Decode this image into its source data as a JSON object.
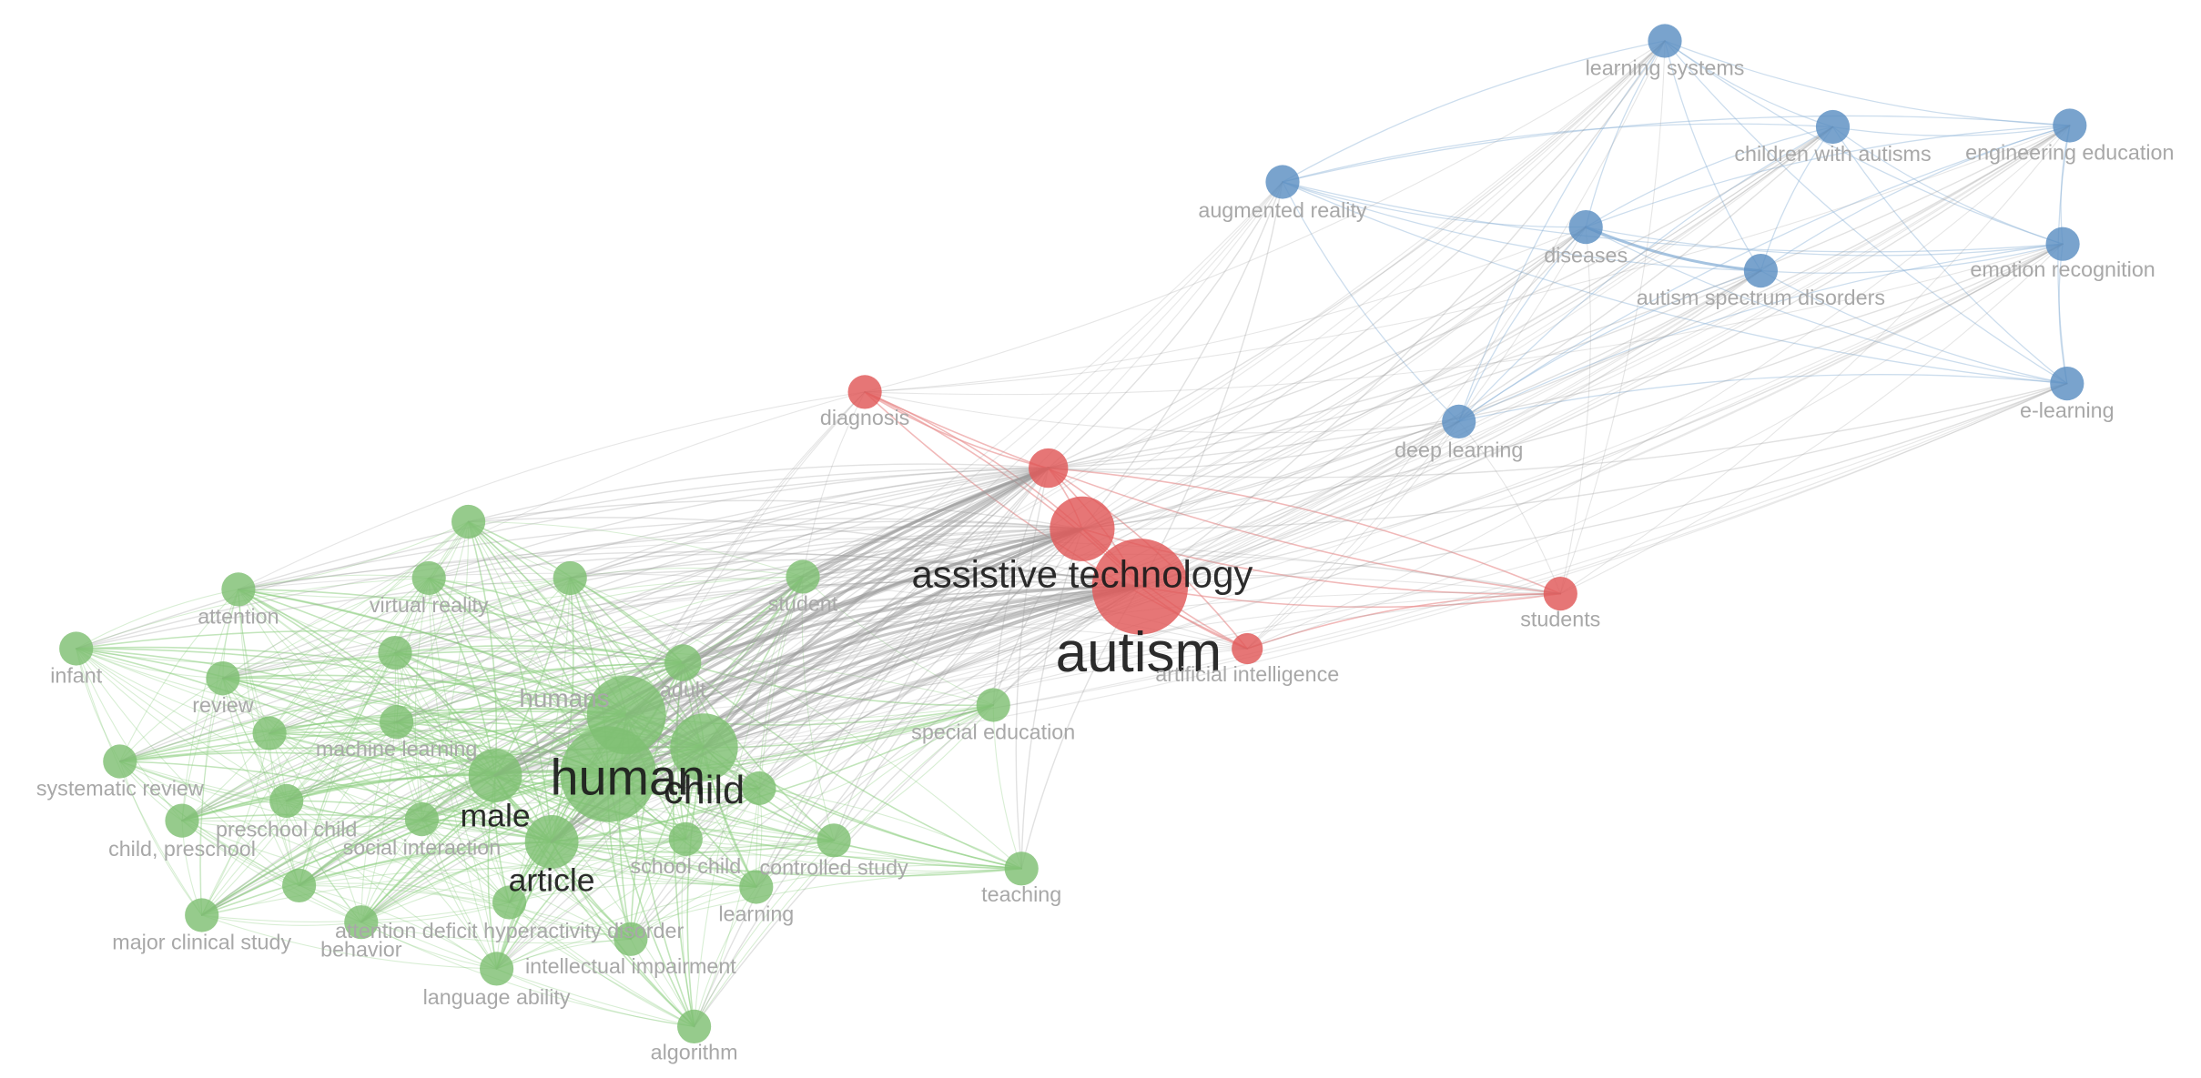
{
  "colors": {
    "green": "#7fbf73",
    "red": "#e05858",
    "blue": "#5b8fc2",
    "edge_gray": "#9a9a9a",
    "edge_green": "#8fcf84",
    "edge_red": "#e88a8a",
    "edge_blue": "#8fb4d8",
    "label_dim": "#a8a8a8",
    "label_dark": "#1a1a1a"
  },
  "nodes": [
    {
      "label": "autism",
      "cluster": "red",
      "weight": 10
    },
    {
      "label": "assistive technology",
      "cluster": "red",
      "weight": 6
    },
    {
      "label": "diagnosis",
      "cluster": "red",
      "weight": 1
    },
    {
      "label": "students",
      "cluster": "red",
      "weight": 1
    },
    {
      "label": "artificial intelligence",
      "cluster": "red",
      "weight": 1
    },
    {
      "label": "learning systems",
      "cluster": "blue",
      "weight": 1
    },
    {
      "label": "children with autisms",
      "cluster": "blue",
      "weight": 1
    },
    {
      "label": "engineering education",
      "cluster": "blue",
      "weight": 1
    },
    {
      "label": "augmented reality",
      "cluster": "blue",
      "weight": 1
    },
    {
      "label": "diseases",
      "cluster": "blue",
      "weight": 1
    },
    {
      "label": "autism spectrum disorders",
      "cluster": "blue",
      "weight": 1
    },
    {
      "label": "emotion recognition",
      "cluster": "blue",
      "weight": 1
    },
    {
      "label": "e-learning",
      "cluster": "blue",
      "weight": 1
    },
    {
      "label": "deep learning",
      "cluster": "blue",
      "weight": 1
    },
    {
      "label": "human",
      "cluster": "green",
      "weight": 10
    },
    {
      "label": "child",
      "cluster": "green",
      "weight": 7
    },
    {
      "label": "humans",
      "cluster": "green",
      "weight": 5
    },
    {
      "label": "male",
      "cluster": "green",
      "weight": 5
    },
    {
      "label": "article",
      "cluster": "green",
      "weight": 4
    },
    {
      "label": "adult",
      "cluster": "green",
      "weight": 2
    },
    {
      "label": "student",
      "cluster": "green",
      "weight": 1
    },
    {
      "label": "virtual reality",
      "cluster": "green",
      "weight": 1
    },
    {
      "label": "attention",
      "cluster": "green",
      "weight": 1
    },
    {
      "label": "infant",
      "cluster": "green",
      "weight": 1
    },
    {
      "label": "review",
      "cluster": "green",
      "weight": 1
    },
    {
      "label": "machine learning",
      "cluster": "green",
      "weight": 1
    },
    {
      "label": "systematic review",
      "cluster": "green",
      "weight": 1
    },
    {
      "label": "preschool child",
      "cluster": "green",
      "weight": 1
    },
    {
      "label": "child, preschool",
      "cluster": "green",
      "weight": 1
    },
    {
      "label": "social interaction",
      "cluster": "green",
      "weight": 1
    },
    {
      "label": "school child",
      "cluster": "green",
      "weight": 1
    },
    {
      "label": "controlled study",
      "cluster": "green",
      "weight": 1
    },
    {
      "label": "special education",
      "cluster": "green",
      "weight": 1
    },
    {
      "label": "teaching",
      "cluster": "green",
      "weight": 1
    },
    {
      "label": "learning",
      "cluster": "green",
      "weight": 1
    },
    {
      "label": "major clinical study",
      "cluster": "green",
      "weight": 1
    },
    {
      "label": "behavior",
      "cluster": "green",
      "weight": 1
    },
    {
      "label": "attention deficit hyperactivity disorder",
      "cluster": "green",
      "weight": 1
    },
    {
      "label": "intellectual impairment",
      "cluster": "green",
      "weight": 1
    },
    {
      "label": "language ability",
      "cluster": "green",
      "weight": 1
    },
    {
      "label": "algorithm",
      "cluster": "green",
      "weight": 1
    },
    {
      "label": "",
      "cluster": "red",
      "weight": 2
    },
    {
      "label": "",
      "cluster": "green",
      "weight": 1
    },
    {
      "label": "",
      "cluster": "green",
      "weight": 1
    },
    {
      "label": "",
      "cluster": "green",
      "weight": 1
    },
    {
      "label": "",
      "cluster": "green",
      "weight": 1
    },
    {
      "label": "",
      "cluster": "green",
      "weight": 1
    },
    {
      "label": "",
      "cluster": "green",
      "weight": 1
    }
  ]
}
